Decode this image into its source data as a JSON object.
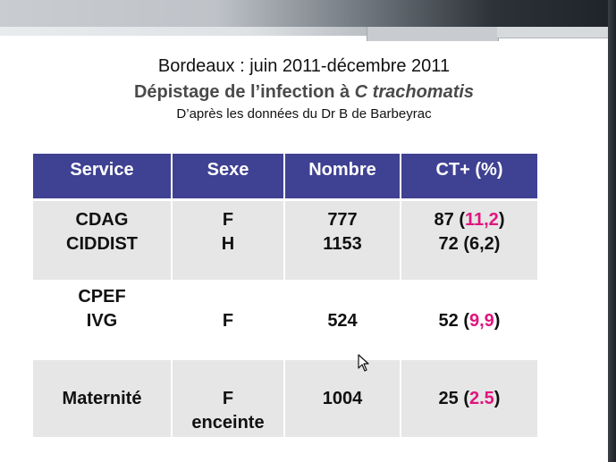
{
  "header": {
    "line1": "Bordeaux : juin 2011-décembre 2011",
    "line2_prefix": "Dépistage de l’infection à ",
    "line2_italic": "C trachomatis",
    "line3": "D’après les données du Dr B de Barbeyrac"
  },
  "table": {
    "columns": [
      "Service",
      "Sexe",
      "Nombre",
      "CT+ (%)"
    ],
    "rows": [
      {
        "service": [
          "CDAG",
          "CIDDIST"
        ],
        "sexe": [
          "F",
          "H"
        ],
        "nombre": [
          "777",
          "1153"
        ],
        "ct": [
          {
            "count": "87 (",
            "pct": "11,2",
            "close": ")",
            "highlight": true
          },
          {
            "count": "72 (",
            "pct": "6,2",
            "close": ")",
            "highlight": false
          }
        ]
      },
      {
        "service": [
          "CPEF",
          "IVG"
        ],
        "sexe": [
          "F"
        ],
        "nombre": [
          "524"
        ],
        "ct": [
          {
            "count": "52 (",
            "pct": "9,9",
            "close": ")",
            "highlight": true
          }
        ]
      },
      {
        "service": [
          "Maternité"
        ],
        "sexe": [
          "F",
          "enceinte"
        ],
        "nombre": [
          "1004"
        ],
        "ct": [
          {
            "count": "25 (",
            "pct": "2.5",
            "close": ")",
            "highlight": true
          }
        ]
      }
    ]
  },
  "colors": {
    "header_bg": "#3f4192",
    "row_gray": "#e6e6e6",
    "highlight": "#e0157e"
  },
  "icons": {
    "cursor": "mouse-pointer-icon"
  }
}
